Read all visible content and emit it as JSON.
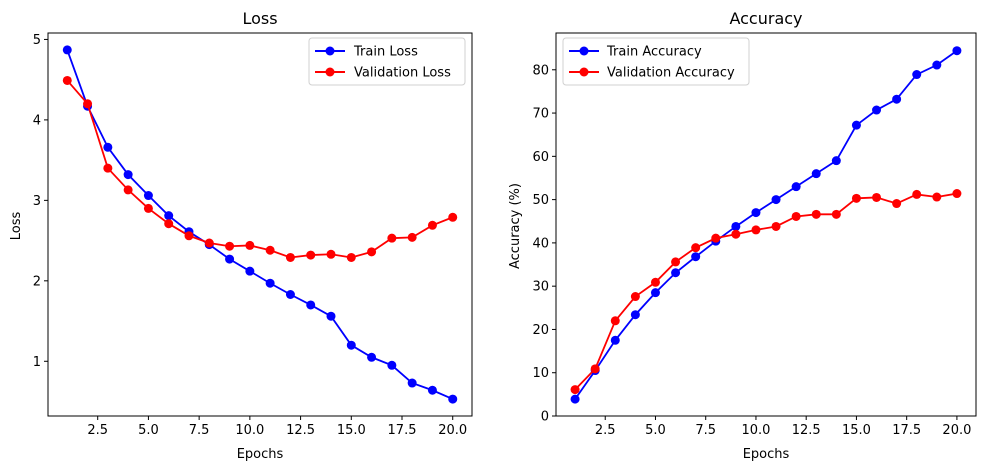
{
  "chart_data": [
    {
      "type": "line",
      "title": "Loss",
      "xlabel": "Epochs",
      "ylabel": "Loss",
      "xlim": [
        0.05,
        20.95
      ],
      "ylim": [
        0.32,
        5.08
      ],
      "xticks": [
        2.5,
        5.0,
        7.5,
        10.0,
        12.5,
        15.0,
        17.5,
        20.0
      ],
      "yticks": [
        1,
        2,
        3,
        4,
        5
      ],
      "grid": false,
      "legend_position": "top-right",
      "x": [
        1,
        2,
        3,
        4,
        5,
        6,
        7,
        8,
        9,
        10,
        11,
        12,
        13,
        14,
        15,
        16,
        17,
        18,
        19,
        20
      ],
      "series": [
        {
          "name": "Train Loss",
          "color": "#0000ff",
          "values": [
            4.87,
            4.17,
            3.66,
            3.32,
            3.06,
            2.81,
            2.61,
            2.45,
            2.27,
            2.12,
            1.97,
            1.83,
            1.7,
            1.56,
            1.2,
            1.05,
            0.95,
            0.73,
            0.64,
            0.53
          ]
        },
        {
          "name": "Validation Loss",
          "color": "#ff0000",
          "values": [
            4.49,
            4.2,
            3.4,
            3.13,
            2.9,
            2.71,
            2.56,
            2.47,
            2.43,
            2.44,
            2.38,
            2.29,
            2.32,
            2.33,
            2.29,
            2.36,
            2.53,
            2.54,
            2.69,
            2.79
          ]
        }
      ]
    },
    {
      "type": "line",
      "title": "Accuracy",
      "xlabel": "Epochs",
      "ylabel": "Accuracy (%)",
      "xlim": [
        0.05,
        20.95
      ],
      "ylim": [
        0,
        88.5
      ],
      "xticks": [
        2.5,
        5.0,
        7.5,
        10.0,
        12.5,
        15.0,
        17.5,
        20.0
      ],
      "yticks": [
        0,
        10,
        20,
        30,
        40,
        50,
        60,
        70,
        80
      ],
      "grid": false,
      "legend_position": "top-left",
      "x": [
        1,
        2,
        3,
        4,
        5,
        6,
        7,
        8,
        9,
        10,
        11,
        12,
        13,
        14,
        15,
        16,
        17,
        18,
        19,
        20
      ],
      "series": [
        {
          "name": "Train Accuracy",
          "color": "#0000ff",
          "values": [
            3.9,
            10.5,
            17.5,
            23.4,
            28.5,
            33.1,
            36.8,
            40.4,
            43.8,
            47.0,
            50.0,
            53.0,
            56.0,
            59.0,
            67.2,
            70.7,
            73.2,
            78.9,
            81.1,
            84.4
          ]
        },
        {
          "name": "Validation Accuracy",
          "color": "#ff0000",
          "values": [
            6.1,
            10.9,
            22.0,
            27.6,
            30.9,
            35.6,
            38.9,
            41.1,
            42.0,
            43.0,
            43.8,
            46.1,
            46.6,
            46.6,
            50.3,
            50.5,
            49.1,
            51.2,
            50.6,
            51.4
          ]
        }
      ]
    }
  ]
}
